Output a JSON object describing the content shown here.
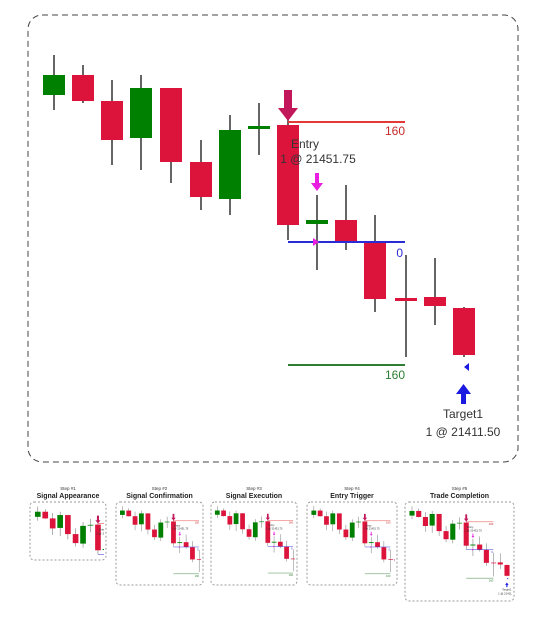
{
  "chart": {
    "stop_label": "160",
    "entry_label": "Entry",
    "entry_order": "1 @ 21451.75",
    "breakeven_label": "0",
    "target_label": "160",
    "target_name": "Target1",
    "target_order": "1 @ 21411.50"
  },
  "steps": [
    {
      "step": "Step #1",
      "title": "Signal Appearance"
    },
    {
      "step": "Step #2",
      "title": "Signal Confirmation"
    },
    {
      "step": "Step #3",
      "title": "Signal Execution"
    },
    {
      "step": "Step #4",
      "title": "Entry Trigger"
    },
    {
      "step": "Step #5",
      "title": "Trade Completion"
    }
  ]
}
